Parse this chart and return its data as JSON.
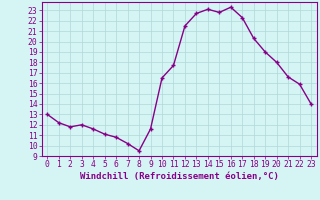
{
  "x": [
    0,
    1,
    2,
    3,
    4,
    5,
    6,
    7,
    8,
    9,
    10,
    11,
    12,
    13,
    14,
    15,
    16,
    17,
    18,
    19,
    20,
    21,
    22,
    23
  ],
  "y": [
    13,
    12.2,
    11.8,
    12,
    11.6,
    11.1,
    10.8,
    10.2,
    9.5,
    11.6,
    16.5,
    17.7,
    21.5,
    22.7,
    23.1,
    22.8,
    23.3,
    22.3,
    20.3,
    19.0,
    18.0,
    16.6,
    15.9,
    14.0
  ],
  "line_color": "#880088",
  "marker": "+",
  "bg_color": "#d5f5f5",
  "grid_color": "#b0d8d8",
  "xlabel": "Windchill (Refroidissement éolien,°C)",
  "ylim": [
    9,
    23.8
  ],
  "xlim": [
    -0.5,
    23.5
  ],
  "yticks": [
    9,
    10,
    11,
    12,
    13,
    14,
    15,
    16,
    17,
    18,
    19,
    20,
    21,
    22,
    23
  ],
  "xticks": [
    0,
    1,
    2,
    3,
    4,
    5,
    6,
    7,
    8,
    9,
    10,
    11,
    12,
    13,
    14,
    15,
    16,
    17,
    18,
    19,
    20,
    21,
    22,
    23
  ],
  "xlabel_fontsize": 6.5,
  "tick_fontsize": 5.8,
  "linewidth": 1.0,
  "marker_size": 3.0,
  "marker_edge_width": 1.0
}
